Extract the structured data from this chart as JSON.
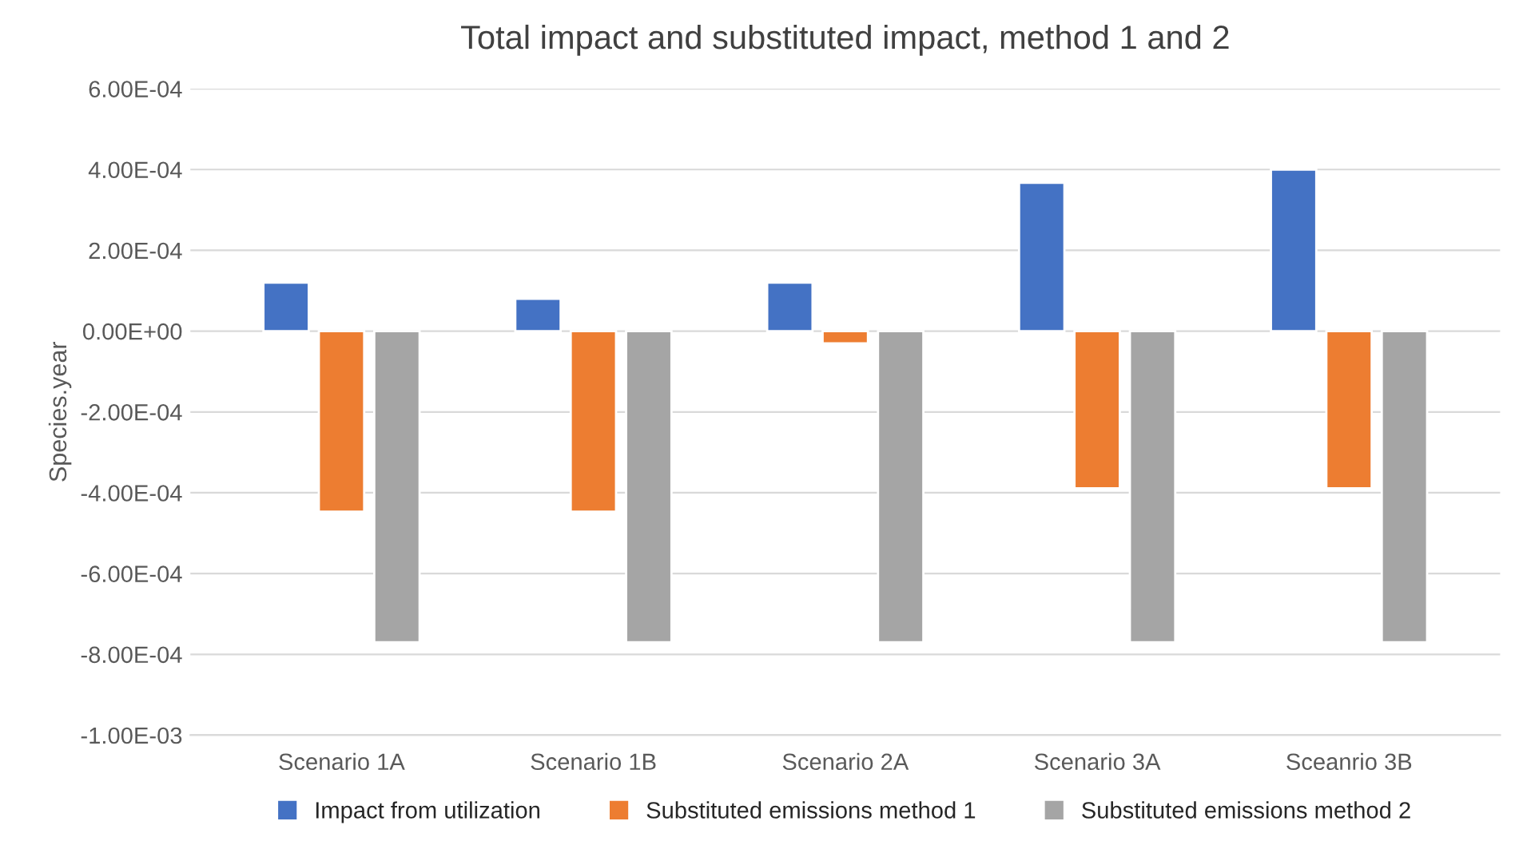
{
  "chart_data": {
    "type": "bar",
    "title": "Total impact and substituted impact, method 1 and 2",
    "ylabel": "Species.year",
    "categories": [
      "Scenario 1A",
      "Scenario 1B",
      "Scenario 2A",
      "Scenario 3A",
      "Sceanrio 3B"
    ],
    "series": [
      {
        "name": "Impact from utilization",
        "color": "#4472c4",
        "values": [
          0.00012,
          8e-05,
          0.00012,
          0.000367,
          0.0004
        ]
      },
      {
        "name": "Substituted emissions method 1",
        "color": "#ed7d31",
        "values": [
          -0.000447,
          -0.000447,
          -3e-05,
          -0.000389,
          -0.000389
        ]
      },
      {
        "name": "Substituted emissions method 2",
        "color": "#a5a5a5",
        "values": [
          -0.00077,
          -0.00077,
          -0.00077,
          -0.00077,
          -0.00077
        ]
      }
    ],
    "ylim": [
      -0.001,
      0.0006
    ],
    "yticks": [
      {
        "value": -0.001,
        "label": "-1.00E-03"
      },
      {
        "value": -0.0008,
        "label": "-8.00E-04"
      },
      {
        "value": -0.0006,
        "label": "-6.00E-04"
      },
      {
        "value": -0.0004,
        "label": "-4.00E-04"
      },
      {
        "value": -0.0002,
        "label": "-2.00E-04"
      },
      {
        "value": 0,
        "label": "0.00E+00"
      },
      {
        "value": 0.0002,
        "label": "2.00E-04"
      },
      {
        "value": 0.0004,
        "label": "4.00E-04"
      },
      {
        "value": 0.0006,
        "label": "6.00E-04"
      }
    ],
    "grid": "y",
    "legend": "bottom"
  }
}
